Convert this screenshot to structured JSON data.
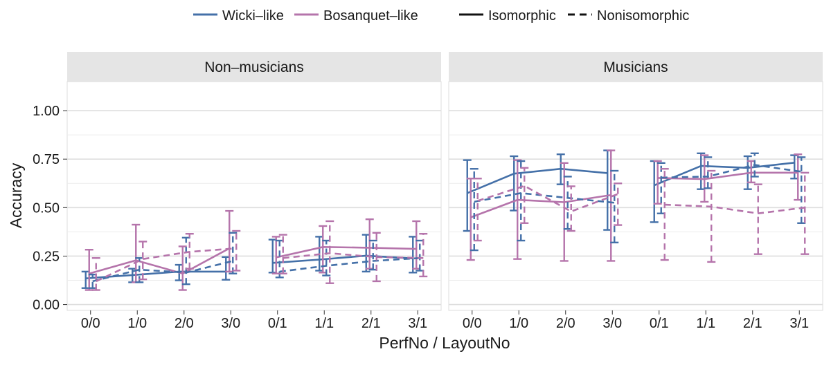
{
  "chart_data": {
    "type": "line",
    "xlabel": "PerfNo / LayoutNo",
    "ylabel": "Accuracy",
    "categories": [
      "0/0",
      "1/0",
      "2/0",
      "3/0",
      "0/1",
      "1/1",
      "2/1",
      "3/1"
    ],
    "ylim": [
      -0.03,
      1.15
    ],
    "yticks": [
      0.0,
      0.25,
      0.5,
      0.75,
      1.0
    ],
    "ytick_labels": [
      "0.00",
      "0.25",
      "0.50",
      "0.75",
      "1.00"
    ],
    "grid": true,
    "legend": {
      "position": "top",
      "colour_entries": [
        {
          "label": "Wicki–like",
          "color": "#4470a8"
        },
        {
          "label": "Bosanquet–like",
          "color": "#b574ab"
        }
      ],
      "linetype_entries": [
        {
          "label": "Isomorphic",
          "dash": "solid"
        },
        {
          "label": "Nonisomorphic",
          "dash": "dashed"
        }
      ]
    },
    "panels": [
      {
        "title": "Non–musicians",
        "series": [
          {
            "name": "Wicki–like Isomorphic",
            "color": "#4470a8",
            "dash": "solid",
            "values": [
              0.135,
              0.152,
              0.17,
              0.17,
              0.215,
              0.232,
              0.252,
              0.238
            ],
            "lower": [
              0.085,
              0.115,
              0.125,
              0.128,
              0.165,
              0.175,
              0.17,
              0.165
            ],
            "upper": [
              0.17,
              0.185,
              0.205,
              0.245,
              0.335,
              0.35,
              0.36,
              0.35
            ]
          },
          {
            "name": "Bosanquet–like Isomorphic",
            "color": "#b574ab",
            "dash": "solid",
            "values": [
              0.16,
              0.228,
              0.16,
              0.29,
              0.243,
              0.297,
              0.293,
              0.287
            ],
            "lower": [
              0.075,
              0.115,
              0.075,
              0.17,
              0.16,
              0.165,
              0.185,
              0.185
            ],
            "upper": [
              0.283,
              0.412,
              0.3,
              0.483,
              0.35,
              0.405,
              0.44,
              0.43
            ]
          },
          {
            "name": "Wicki–like Nonisomorphic",
            "color": "#4470a8",
            "dash": "dashed",
            "values": [
              0.12,
              0.18,
              0.165,
              0.225,
              0.17,
              0.2,
              0.225,
              0.24
            ],
            "lower": [
              0.085,
              0.115,
              0.105,
              0.16,
              0.14,
              0.15,
              0.18,
              0.175
            ],
            "upper": [
              0.155,
              0.24,
              0.345,
              0.37,
              0.33,
              0.33,
              0.33,
              0.33
            ]
          },
          {
            "name": "Bosanquet–like Nonisomorphic",
            "color": "#b574ab",
            "dash": "dashed",
            "values": [
              0.12,
              0.235,
              0.272,
              0.29,
              0.24,
              0.265,
              0.245,
              0.24
            ],
            "lower": [
              0.075,
              0.13,
              0.185,
              0.175,
              0.16,
              0.11,
              0.12,
              0.145
            ],
            "upper": [
              0.24,
              0.325,
              0.365,
              0.38,
              0.36,
              0.43,
              0.37,
              0.365
            ]
          }
        ]
      },
      {
        "title": "Musicians",
        "series": [
          {
            "name": "Wicki–like Isomorphic",
            "color": "#4470a8",
            "dash": "solid",
            "values": [
              0.575,
              0.675,
              0.7,
              0.678,
              0.615,
              0.715,
              0.705,
              0.732
            ],
            "lower": [
              0.38,
              0.485,
              0.62,
              0.385,
              0.425,
              0.595,
              0.595,
              0.65
            ],
            "upper": [
              0.745,
              0.765,
              0.775,
              0.795,
              0.74,
              0.78,
              0.765,
              0.77
            ]
          },
          {
            "name": "Bosanquet–like Isomorphic",
            "color": "#b574ab",
            "dash": "solid",
            "values": [
              0.45,
              0.54,
              0.528,
              0.565,
              0.653,
              0.647,
              0.68,
              0.68
            ],
            "lower": [
              0.23,
              0.235,
              0.225,
              0.225,
              0.52,
              0.53,
              0.63,
              0.54
            ],
            "upper": [
              0.65,
              0.745,
              0.73,
              0.795,
              0.74,
              0.77,
              0.74,
              0.775
            ]
          },
          {
            "name": "Wicki–like Nonisomorphic",
            "color": "#4470a8",
            "dash": "dashed",
            "values": [
              0.53,
              0.575,
              0.55,
              0.525,
              0.655,
              0.66,
              0.72,
              0.685
            ],
            "lower": [
              0.28,
              0.33,
              0.39,
              0.32,
              0.47,
              0.6,
              0.66,
              0.42
            ],
            "upper": [
              0.7,
              0.74,
              0.66,
              0.69,
              0.73,
              0.76,
              0.78,
              0.76
            ]
          },
          {
            "name": "Bosanquet–like Nonisomorphic",
            "color": "#b574ab",
            "dash": "dashed",
            "values": [
              0.535,
              0.612,
              0.48,
              0.57,
              0.515,
              0.505,
              0.47,
              0.5
            ],
            "lower": [
              0.33,
              0.42,
              0.38,
              0.41,
              0.23,
              0.22,
              0.26,
              0.26
            ],
            "upper": [
              0.65,
              0.705,
              0.61,
              0.625,
              0.7,
              0.69,
              0.62,
              0.68
            ]
          }
        ]
      }
    ]
  }
}
